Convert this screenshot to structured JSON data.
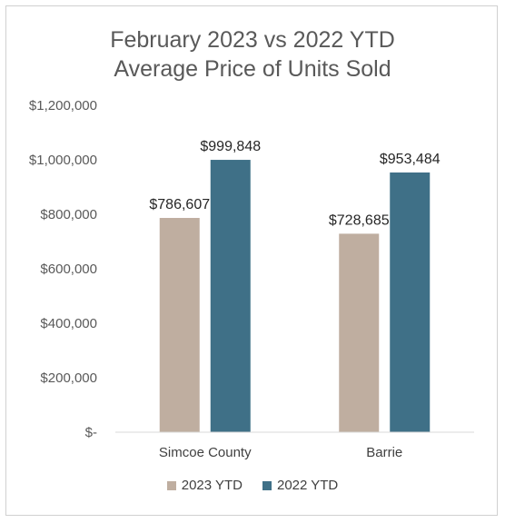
{
  "chart_data": {
    "type": "bar",
    "title": "February 2023 vs 2022 YTD",
    "subtitle": "Average Price of Units Sold",
    "categories": [
      "Simcoe County",
      "Barrie"
    ],
    "series": [
      {
        "name": "2023 YTD",
        "values": [
          786607,
          728685
        ],
        "labels": [
          "$786,607",
          "$728,685"
        ],
        "color": "#bfaea0"
      },
      {
        "name": "2022 YTD",
        "values": [
          999848,
          953484
        ],
        "labels": [
          "$999,848",
          "$953,484"
        ],
        "color": "#3f7087"
      }
    ],
    "ylim": [
      0,
      1200000
    ],
    "yticks": [
      {
        "value": 0,
        "label": "$-"
      },
      {
        "value": 200000,
        "label": "$200,000"
      },
      {
        "value": 400000,
        "label": "$400,000"
      },
      {
        "value": 600000,
        "label": "$600,000"
      },
      {
        "value": 800000,
        "label": "$800,000"
      },
      {
        "value": 1000000,
        "label": "$1,000,000"
      },
      {
        "value": 1200000,
        "label": "$1,200,000"
      }
    ],
    "grid": false,
    "legend_position": "bottom"
  }
}
